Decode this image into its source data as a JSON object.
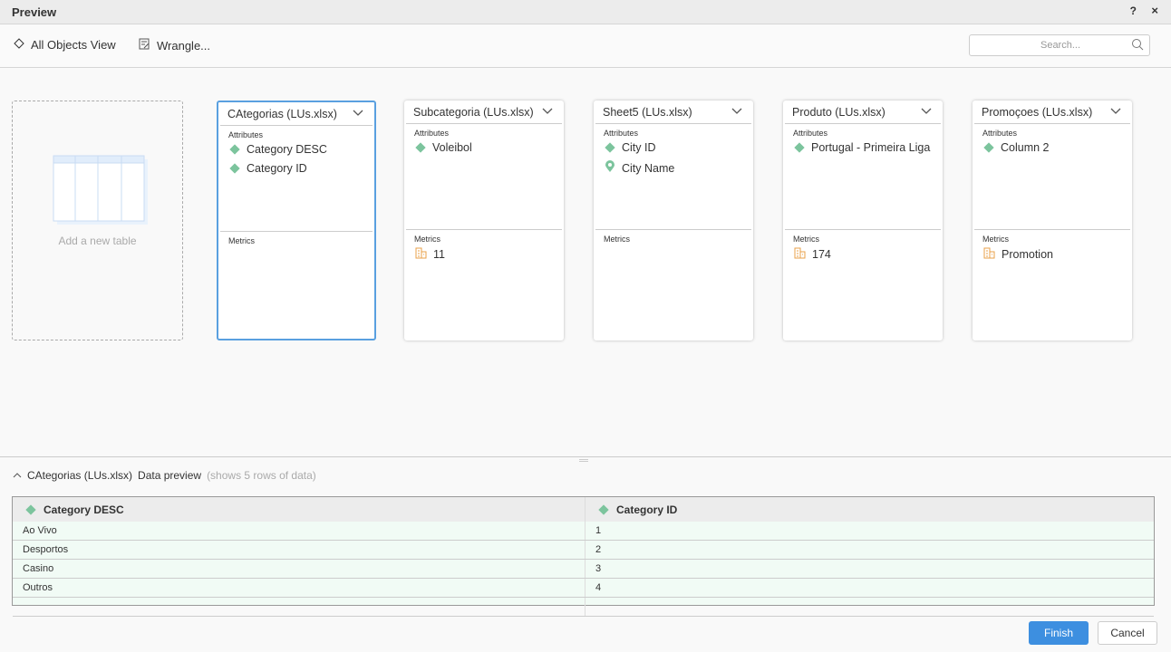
{
  "window": {
    "title": "Preview",
    "help": "?",
    "close": "×"
  },
  "toolbar": {
    "all_objects": "All Objects View",
    "wrangle": "Wrangle...",
    "search_placeholder": "Search..."
  },
  "add_table": {
    "label": "Add a new table"
  },
  "cards": [
    {
      "title": "CAtegorias (LUs.xlsx)",
      "selected": true,
      "attributes_label": "Attributes",
      "metrics_label": "Metrics",
      "attributes": [
        {
          "icon": "diamond",
          "label": "Category DESC"
        },
        {
          "icon": "diamond",
          "label": "Category ID"
        }
      ],
      "metrics": []
    },
    {
      "title": "Subcategoria (LUs.xlsx)",
      "attributes_label": "Attributes",
      "metrics_label": "Metrics",
      "attributes": [
        {
          "icon": "diamond",
          "label": "Voleibol"
        }
      ],
      "metrics": [
        {
          "label": "11"
        }
      ]
    },
    {
      "title": "Sheet5 (LUs.xlsx)",
      "attributes_label": "Attributes",
      "metrics_label": "Metrics",
      "attributes": [
        {
          "icon": "diamond",
          "label": "City ID"
        },
        {
          "icon": "map-pin",
          "label": "City Name"
        }
      ],
      "metrics": []
    },
    {
      "title": "Produto (LUs.xlsx)",
      "attributes_label": "Attributes",
      "metrics_label": "Metrics",
      "attributes": [
        {
          "icon": "diamond",
          "label": "Portugal - Primeira Liga"
        }
      ],
      "metrics": [
        {
          "label": "174"
        }
      ]
    },
    {
      "title": "Promoçoes (LUs.xlsx)",
      "attributes_label": "Attributes",
      "metrics_label": "Metrics",
      "attributes": [
        {
          "icon": "diamond",
          "label": "Column 2"
        }
      ],
      "metrics": [
        {
          "label": "Promotion"
        }
      ]
    }
  ],
  "preview": {
    "table": "CAtegorias (LUs.xlsx)",
    "label": "Data preview",
    "note": "(shows 5 rows of data)",
    "columns": [
      "Category DESC",
      "Category ID"
    ],
    "rows": [
      [
        "Ao Vivo",
        "1"
      ],
      [
        "Desportos",
        "2"
      ],
      [
        "Casino",
        "3"
      ],
      [
        "Outros",
        "4"
      ],
      [
        "",
        ""
      ]
    ]
  },
  "footer": {
    "finish": "Finish",
    "cancel": "Cancel"
  },
  "colors": {
    "accent": "#3d8fe0",
    "attribute": "#7cc49d",
    "metric": "#e8a04a"
  }
}
